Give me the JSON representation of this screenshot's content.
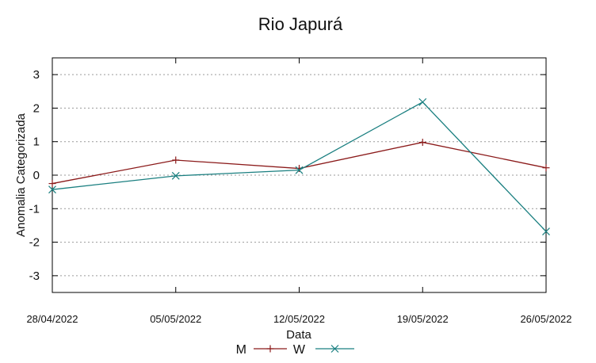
{
  "chart_data": {
    "type": "line",
    "title": "Rio Japurá",
    "xlabel": "Data",
    "ylabel": "Anomalia Categorizada",
    "categories": [
      "28/04/2022",
      "05/05/2022",
      "12/05/2022",
      "19/05/2022",
      "26/05/2022"
    ],
    "ylim": [
      -3.5,
      3.5
    ],
    "yticks": [
      "-3",
      "-2",
      "-1",
      "0",
      "1",
      "2",
      "3"
    ],
    "grid": true,
    "legend_position": "bottom-center",
    "series": [
      {
        "name": "M",
        "color": "#8b1a1a",
        "marker": "plus",
        "values": [
          -0.25,
          0.45,
          0.2,
          0.98,
          0.22
        ]
      },
      {
        "name": "W",
        "color": "#1a7f80",
        "marker": "cross",
        "values": [
          -0.43,
          -0.02,
          0.15,
          2.18,
          -1.68
        ]
      }
    ]
  }
}
